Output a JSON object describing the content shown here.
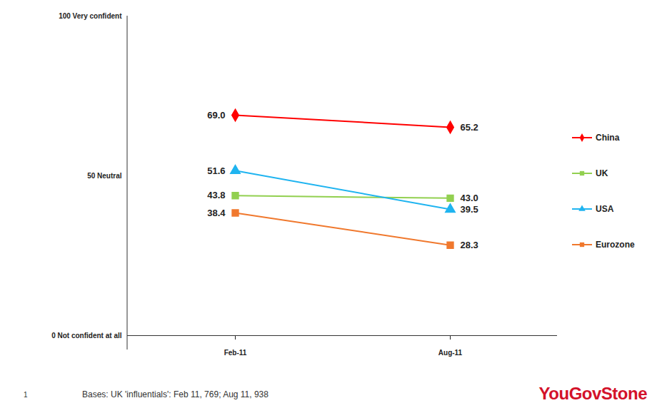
{
  "chart_data": {
    "type": "line",
    "categories": [
      "Feb-11",
      "Aug-11"
    ],
    "series": [
      {
        "name": "China",
        "color": "#ff0000",
        "marker": "diamond",
        "values": [
          69.0,
          65.2
        ],
        "value_labels": [
          "69.0",
          "65.2"
        ]
      },
      {
        "name": "UK",
        "color": "#92d050",
        "marker": "square",
        "values": [
          43.8,
          43.0
        ],
        "value_labels": [
          "43.8",
          "43.0"
        ]
      },
      {
        "name": "USA",
        "color": "#1fb4f0",
        "marker": "triangle",
        "values": [
          51.6,
          39.5
        ],
        "value_labels": [
          "51.6",
          "39.5"
        ]
      },
      {
        "name": "Eurozone",
        "color": "#f0782d",
        "marker": "square",
        "values": [
          38.4,
          28.3
        ],
        "value_labels": [
          "38.4",
          "28.3"
        ]
      }
    ],
    "ylim": [
      0,
      100
    ],
    "yticks": [
      {
        "value": 0,
        "label": "0 Not confident at all"
      },
      {
        "value": 50,
        "label": "50 Neutral"
      },
      {
        "value": 100,
        "label": "100 Very confident"
      }
    ],
    "grid": false,
    "data_labels": true,
    "legend": "right"
  },
  "footer": {
    "note": "Bases: UK 'influentials': Feb 11, 769; Aug 11, 938",
    "page_number": "1",
    "logo": "YouGovStone"
  }
}
